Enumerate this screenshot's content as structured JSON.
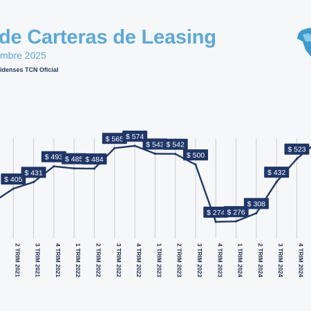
{
  "header": {
    "title_bold": "de Carteras",
    "title_rest": " de Leasing",
    "subtitle": "mbre 2025",
    "source": "idenses TCN Oficial"
  },
  "colors": {
    "title": "#5aa9dc",
    "line": "#20396a",
    "label_bg": "#1f3668",
    "label_text": "#ffffff",
    "grid": "#c9ccd2",
    "axis_text": "#1f2d4a",
    "logo": "#3a9bd0"
  },
  "logo": {
    "icon": "map-logo-icon"
  },
  "chart_data": {
    "type": "line",
    "categories": [
      "",
      "2 TRIM 2021",
      "3 TRIM 2021",
      "4 TRIM 2021",
      "1 TRIM 2022",
      "2 TRIM 2022",
      "3 TRIM 2022",
      "4 TRIM 2022",
      "1 TRIM 2023",
      "2 TRIM 2023",
      "3 TRIM 2023",
      "4 TRIM 2023",
      "1 TRIM 2024",
      "2 TRIM 2024",
      "3 TRIM 2024",
      "4 TRIM 2024",
      ""
    ],
    "values": [
      352,
      405,
      431,
      493,
      485,
      484,
      565,
      574,
      543,
      542,
      500,
      274,
      276,
      308,
      432,
      523,
      590
    ],
    "data_labels": [
      "",
      "$ 405",
      "$ 431",
      "$ 493",
      "$ 485",
      "$ 484",
      "$ 565",
      "$ 574",
      "$ 543",
      "$ 542",
      "$ 500",
      "$ 274",
      "$ 276",
      "$ 308",
      "$ 432",
      "$ 523",
      ""
    ],
    "title": "",
    "xlabel": "",
    "ylabel": "",
    "grid": "vertical"
  }
}
